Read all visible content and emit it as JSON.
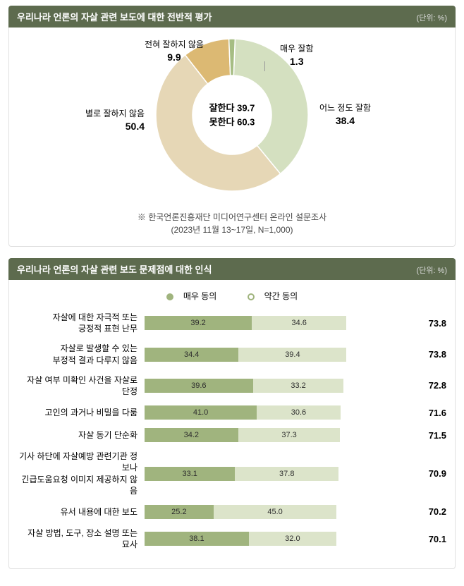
{
  "unit_label": "(단위: %)",
  "donut": {
    "title": "우리나라 언론의 자살 관련 보도에 대한 전반적 평가",
    "center": {
      "good_label": "잘한다",
      "good_value": "39.7",
      "bad_label": "못한다",
      "bad_value": "60.3"
    },
    "slices": [
      {
        "label": "어느 정도 잘함",
        "value": 38.4,
        "color": "#d4e0c0"
      },
      {
        "label": "별로 잘하지 않음",
        "value": 50.4,
        "color": "#e6d7b6"
      },
      {
        "label": "전혀 잘하지 않음",
        "value": 9.9,
        "color": "#dcb973"
      },
      {
        "label": "매우 잘함",
        "value": 1.3,
        "color": "#a6bd83"
      }
    ],
    "ring_thickness": 52,
    "size": 220
  },
  "footnote": {
    "line1": "※ 한국언론진흥재단 미디어연구센터 온라인 설문조사",
    "line2": "(2023년 11월 13~17일, N=1,000)"
  },
  "bars": {
    "title": "우리나라 언론의 자살 관련 보도 문제점에 대한 인식",
    "legend": {
      "strong_label": "매우 동의",
      "weak_label": "약간 동의",
      "strong_color": "#a0b47e",
      "weak_color": "#dce4ca"
    },
    "full_width_value": 100,
    "items": [
      {
        "label": "자살에 대한 자극적 또는\n긍정적 표현 난무",
        "strong": 39.2,
        "weak": 34.6,
        "total": 73.8
      },
      {
        "label": "자살로 발생할 수 있는\n부정적 결과 다루지 않음",
        "strong": 34.4,
        "weak": 39.4,
        "total": 73.8
      },
      {
        "label": "자살 여부 미확인 사건을 자살로 단정",
        "strong": 39.6,
        "weak": 33.2,
        "total": 72.8
      },
      {
        "label": "고인의 과거나 비밀을 다룸",
        "strong": 41.0,
        "weak": 30.6,
        "total": 71.6
      },
      {
        "label": "자살 동기 단순화",
        "strong": 34.2,
        "weak": 37.3,
        "total": 71.5
      },
      {
        "label": "기사 하단에 자살예방 관련기관 정보나\n긴급도움요청 이미지 제공하지 않음",
        "strong": 33.1,
        "weak": 37.8,
        "total": 70.9
      },
      {
        "label": "유서 내용에 대한 보도",
        "strong": 25.2,
        "weak": 45.0,
        "total": 70.2
      },
      {
        "label": "자살 방법, 도구, 장소 설명 또는 묘사",
        "strong": 38.1,
        "weak": 32.0,
        "total": 70.1
      }
    ]
  }
}
